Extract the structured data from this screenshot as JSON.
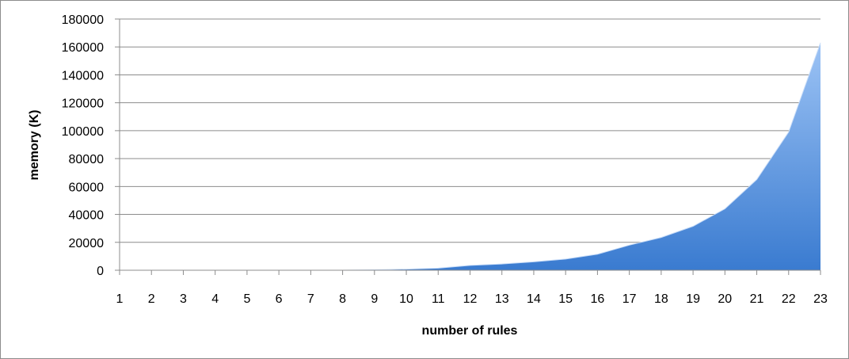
{
  "chart_data": {
    "type": "area",
    "title": "",
    "xlabel": "number of rules",
    "ylabel": "memory (K)",
    "x": [
      1,
      2,
      3,
      4,
      5,
      6,
      7,
      8,
      9,
      10,
      11,
      12,
      13,
      14,
      15,
      16,
      17,
      18,
      19,
      20,
      21,
      22,
      23
    ],
    "series": [
      {
        "values": [
          0,
          0,
          0,
          0,
          0,
          0,
          0,
          0,
          300,
          800,
          1500,
          3500,
          4500,
          6000,
          8000,
          11500,
          18000,
          23500,
          31500,
          44000,
          65000,
          99000,
          163000
        ]
      }
    ],
    "ylim": [
      0,
      180000
    ],
    "yticks": [
      "0",
      "20000",
      "40000",
      "60000",
      "80000",
      "100000",
      "120000",
      "140000",
      "160000",
      "180000"
    ],
    "xticks": [
      "1",
      "2",
      "3",
      "4",
      "5",
      "6",
      "7",
      "8",
      "9",
      "10",
      "11",
      "12",
      "13",
      "14",
      "15",
      "16",
      "17",
      "18",
      "19",
      "20",
      "21",
      "22",
      "23"
    ],
    "grid": true,
    "legend": "none",
    "colors": {
      "fill_top": "#9cc3f5",
      "fill_bottom": "#3a7bd0",
      "gridline": "#8c8c8c",
      "axis": "#8c8c8c",
      "border": "#8c8c8c"
    }
  }
}
